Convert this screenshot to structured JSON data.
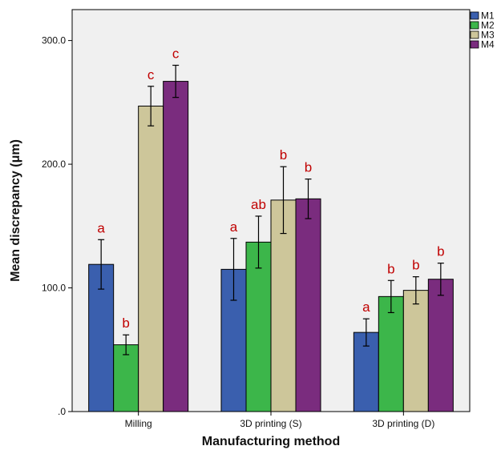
{
  "chart_data": {
    "type": "bar",
    "title": "",
    "xlabel": "Manufacturing method",
    "ylabel": "Mean discrepancy (μm)",
    "ylim": [
      0,
      325
    ],
    "yticks": [
      {
        "value": 0,
        "label": ".0"
      },
      {
        "value": 100,
        "label": "100.0"
      },
      {
        "value": 200,
        "label": "200.0"
      },
      {
        "value": 300,
        "label": "300.0"
      }
    ],
    "grid": false,
    "legend_position": "top-right",
    "categories": [
      "Milling",
      "3D printing (S)",
      "3D printing (D)"
    ],
    "series": [
      {
        "name": "M1",
        "color": "#3a5fae",
        "values": [
          119,
          115,
          64
        ],
        "errors": [
          20,
          25,
          11
        ],
        "significance": [
          "a",
          "a",
          "a"
        ]
      },
      {
        "name": "M2",
        "color": "#3cb64a",
        "values": [
          54,
          137,
          93
        ],
        "errors": [
          8,
          21,
          13
        ],
        "significance": [
          "b",
          "ab",
          "b"
        ]
      },
      {
        "name": "M3",
        "color": "#cdc69a",
        "values": [
          247,
          171,
          98
        ],
        "errors": [
          16,
          27,
          11
        ],
        "significance": [
          "c",
          "b",
          "b"
        ]
      },
      {
        "name": "M4",
        "color": "#7a2c7e",
        "values": [
          267,
          172,
          107
        ],
        "errors": [
          13,
          16,
          13
        ],
        "significance": [
          "c",
          "b",
          "b"
        ]
      }
    ]
  },
  "colors": {
    "plot_background": "#f0f0f0",
    "significance_text": "#c00000"
  }
}
